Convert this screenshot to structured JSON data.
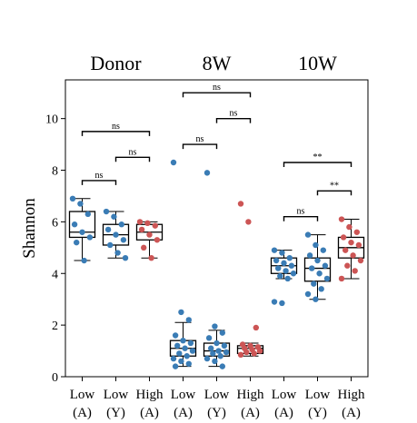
{
  "chart_data": {
    "type": "box",
    "ylabel": "Shannon",
    "ylim": [
      0,
      11.5
    ],
    "yticks": [
      0,
      2,
      4,
      6,
      8,
      10
    ],
    "grid": false,
    "groups": [
      {
        "label": "Donor",
        "categories": [
          0,
          1,
          2
        ]
      },
      {
        "label": "8W",
        "categories": [
          3,
          4,
          5
        ]
      },
      {
        "label": "10W",
        "categories": [
          6,
          7,
          8
        ]
      }
    ],
    "categories": [
      {
        "top": "Low",
        "bottom": "(A)"
      },
      {
        "top": "Low",
        "bottom": "(Y)"
      },
      {
        "top": "High",
        "bottom": "(A)"
      },
      {
        "top": "Low",
        "bottom": "(A)"
      },
      {
        "top": "Low",
        "bottom": "(Y)"
      },
      {
        "top": "High",
        "bottom": "(A)"
      },
      {
        "top": "Low",
        "bottom": "(A)"
      },
      {
        "top": "Low",
        "bottom": "(Y)"
      },
      {
        "top": "High",
        "bottom": "(A)"
      }
    ],
    "colors": {
      "Low": "#3a7cb5",
      "High": "#cc5555"
    },
    "boxes": [
      {
        "q1": 5.4,
        "median": 5.6,
        "q3": 6.4,
        "whisker_low": 4.5,
        "whisker_high": 6.9,
        "points": [
          6.9,
          6.7,
          6.3,
          5.9,
          5.6,
          5.4,
          5.2,
          4.5
        ]
      },
      {
        "q1": 5.1,
        "median": 5.5,
        "q3": 5.9,
        "whisker_low": 4.6,
        "whisker_high": 6.4,
        "points": [
          6.4,
          6.2,
          5.9,
          5.7,
          5.5,
          5.3,
          5.1,
          4.8,
          4.6
        ]
      },
      {
        "q1": 5.3,
        "median": 5.6,
        "q3": 5.9,
        "whisker_low": 4.6,
        "whisker_high": 6.0,
        "points": [
          6.0,
          5.95,
          5.85,
          5.7,
          5.5,
          5.3,
          5.0,
          4.6
        ]
      },
      {
        "q1": 0.8,
        "median": 1.1,
        "q3": 1.4,
        "whisker_low": 0.4,
        "whisker_high": 2.1,
        "points": [
          8.3,
          2.5,
          2.2,
          1.6,
          1.4,
          1.3,
          1.2,
          1.1,
          1.0,
          0.9,
          0.8,
          0.7,
          0.6,
          0.5,
          0.4
        ]
      },
      {
        "q1": 0.8,
        "median": 1.0,
        "q3": 1.3,
        "whisker_low": 0.4,
        "whisker_high": 1.8,
        "points": [
          7.9,
          1.95,
          1.7,
          1.5,
          1.3,
          1.2,
          1.1,
          1.0,
          0.95,
          0.9,
          0.8,
          0.7,
          0.6,
          0.4
        ]
      },
      {
        "q1": 0.9,
        "median": 1.1,
        "q3": 1.2,
        "whisker_low": 0.8,
        "whisker_high": 1.3,
        "points": [
          6.7,
          6.0,
          1.9,
          1.25,
          1.2,
          1.15,
          1.1,
          1.05,
          1.0,
          0.95,
          0.9,
          0.85
        ]
      },
      {
        "q1": 4.0,
        "median": 4.3,
        "q3": 4.6,
        "whisker_low": 3.8,
        "whisker_high": 4.9,
        "points": [
          4.9,
          4.8,
          4.6,
          4.5,
          4.4,
          4.3,
          4.2,
          4.1,
          4.0,
          3.9,
          3.8,
          2.9,
          2.85
        ]
      },
      {
        "q1": 3.7,
        "median": 4.2,
        "q3": 4.6,
        "whisker_low": 3.0,
        "whisker_high": 5.5,
        "points": [
          5.5,
          5.1,
          4.9,
          4.7,
          4.5,
          4.3,
          4.2,
          4.0,
          3.8,
          3.6,
          3.4,
          3.2,
          3.0
        ]
      },
      {
        "q1": 4.6,
        "median": 5.0,
        "q3": 5.4,
        "whisker_low": 3.8,
        "whisker_high": 6.1,
        "points": [
          6.1,
          5.8,
          5.6,
          5.4,
          5.2,
          5.1,
          4.9,
          4.7,
          4.5,
          4.3,
          4.1,
          3.8
        ]
      }
    ],
    "comparisons": [
      {
        "from": 0,
        "to": 1,
        "y": 7.6,
        "label": "ns"
      },
      {
        "from": 1,
        "to": 2,
        "y": 8.5,
        "label": "ns"
      },
      {
        "from": 0,
        "to": 2,
        "y": 9.5,
        "label": "ns"
      },
      {
        "from": 3,
        "to": 4,
        "y": 9.0,
        "label": "ns"
      },
      {
        "from": 4,
        "to": 5,
        "y": 10.0,
        "label": "ns"
      },
      {
        "from": 3,
        "to": 5,
        "y": 11.0,
        "label": "ns"
      },
      {
        "from": 6,
        "to": 7,
        "y": 6.2,
        "label": "ns"
      },
      {
        "from": 7,
        "to": 8,
        "y": 7.2,
        "label": "**"
      },
      {
        "from": 6,
        "to": 8,
        "y": 8.3,
        "label": "**"
      }
    ]
  }
}
